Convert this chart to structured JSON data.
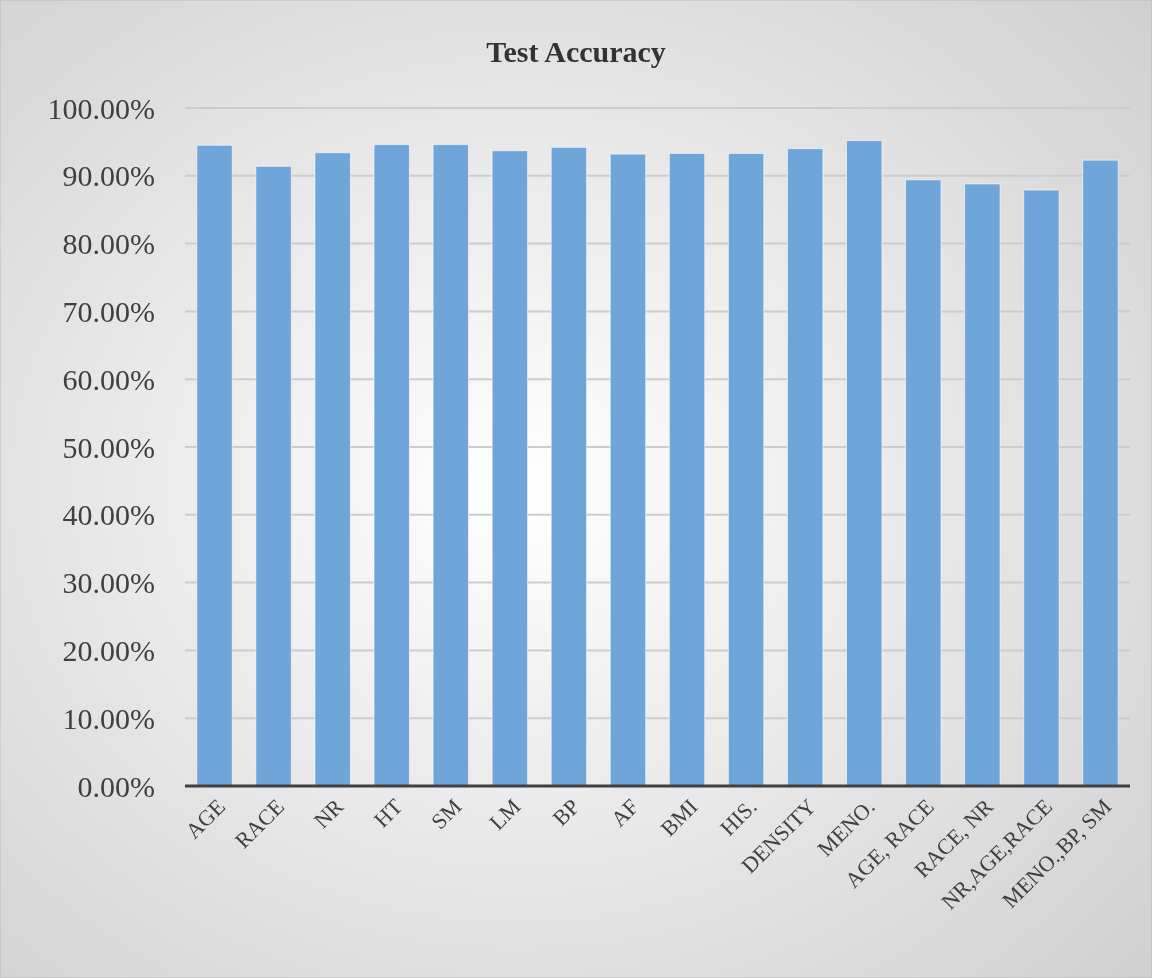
{
  "chart_data": {
    "type": "bar",
    "title": "Test Accuracy",
    "categories": [
      "AGE",
      "RACE",
      "NR",
      "HT",
      "SM",
      "LM",
      "BP",
      "AF",
      "BMI",
      "HIS.",
      "DENSITY",
      "MENO.",
      "AGE, RACE",
      "RACE, NR",
      "NR,AGE,RACE",
      "MENO.,BP, SM"
    ],
    "values": [
      94.5,
      91.4,
      93.4,
      94.6,
      94.6,
      93.7,
      94.2,
      93.2,
      93.3,
      93.3,
      94.0,
      95.2,
      89.4,
      88.8,
      87.9,
      92.3
    ],
    "color": "#6fa5d8",
    "ylim": [
      0,
      100
    ],
    "yticks": [
      {
        "value": 0,
        "label": "0.00%"
      },
      {
        "value": 10,
        "label": "10.00%"
      },
      {
        "value": 20,
        "label": "20.00%"
      },
      {
        "value": 30,
        "label": "30.00%"
      },
      {
        "value": 40,
        "label": "40.00%"
      },
      {
        "value": 50,
        "label": "50.00%"
      },
      {
        "value": 60,
        "label": "60.00%"
      },
      {
        "value": 70,
        "label": "70.00%"
      },
      {
        "value": 80,
        "label": "80.00%"
      },
      {
        "value": 90,
        "label": "90.00%"
      },
      {
        "value": 100,
        "label": "100.00%"
      }
    ],
    "grid": "y"
  }
}
